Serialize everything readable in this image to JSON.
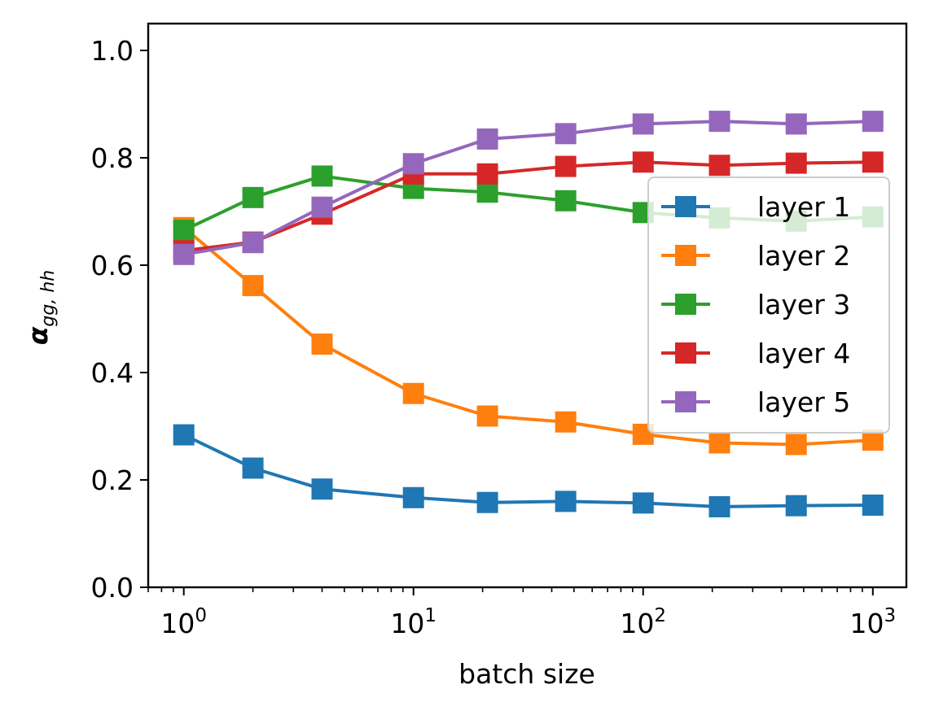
{
  "chart_data": {
    "type": "line",
    "title": "",
    "xlabel": "batch size",
    "ylabel_base": "α",
    "ylabel_sub": "gg, hh",
    "xscale": "log",
    "xlim": [
      0.7,
      1400
    ],
    "ylim": [
      0,
      1.05
    ],
    "x": [
      1,
      2,
      4,
      10,
      21,
      46,
      100,
      215,
      464,
      1000
    ],
    "x_ticks": [
      {
        "value": 1,
        "base": "10",
        "exp": "0"
      },
      {
        "value": 10,
        "base": "10",
        "exp": "1"
      },
      {
        "value": 100,
        "base": "10",
        "exp": "2"
      },
      {
        "value": 1000,
        "base": "10",
        "exp": "3"
      }
    ],
    "y_ticks": [
      {
        "value": 0.0,
        "label": "0.0"
      },
      {
        "value": 0.2,
        "label": "0.2"
      },
      {
        "value": 0.4,
        "label": "0.4"
      },
      {
        "value": 0.6,
        "label": "0.6"
      },
      {
        "value": 0.8,
        "label": "0.8"
      },
      {
        "value": 1.0,
        "label": "1.0"
      }
    ],
    "grid": false,
    "legend_position": "center-right",
    "marker": "square",
    "series": [
      {
        "name": "layer 1",
        "color": "#1f77b4",
        "values": [
          0.284,
          0.222,
          0.183,
          0.167,
          0.158,
          0.16,
          0.157,
          0.15,
          0.152,
          0.153
        ]
      },
      {
        "name": "layer 2",
        "color": "#ff7f0e",
        "values": [
          0.67,
          0.562,
          0.453,
          0.361,
          0.319,
          0.308,
          0.285,
          0.269,
          0.266,
          0.274
        ]
      },
      {
        "name": "layer 3",
        "color": "#2ca02c",
        "values": [
          0.665,
          0.726,
          0.766,
          0.743,
          0.736,
          0.72,
          0.698,
          0.688,
          0.682,
          0.69
        ]
      },
      {
        "name": "layer 4",
        "color": "#d62728",
        "values": [
          0.627,
          0.643,
          0.695,
          0.77,
          0.77,
          0.784,
          0.792,
          0.786,
          0.79,
          0.792
        ]
      },
      {
        "name": "layer 5",
        "color": "#9467bd",
        "values": [
          0.62,
          0.642,
          0.708,
          0.789,
          0.835,
          0.845,
          0.863,
          0.868,
          0.863,
          0.868
        ]
      }
    ]
  }
}
